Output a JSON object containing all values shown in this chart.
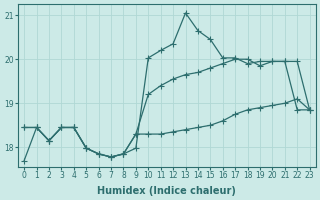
{
  "xlabel": "Humidex (Indice chaleur)",
  "bg_color": "#cceae7",
  "line_color": "#2d6e6e",
  "grid_color": "#b0d8d5",
  "ylim": [
    17.55,
    21.25
  ],
  "xlim": [
    -0.5,
    23.5
  ],
  "yticks": [
    18,
    19,
    20,
    21
  ],
  "xticks": [
    0,
    1,
    2,
    3,
    4,
    5,
    6,
    7,
    8,
    9,
    10,
    11,
    12,
    13,
    14,
    15,
    16,
    17,
    18,
    19,
    20,
    21,
    22,
    23
  ],
  "hours": [
    0,
    1,
    2,
    3,
    4,
    5,
    6,
    7,
    8,
    9,
    10,
    11,
    12,
    13,
    14,
    15,
    16,
    17,
    18,
    19,
    20,
    21,
    22,
    23
  ],
  "line1": [
    17.7,
    18.45,
    18.15,
    18.45,
    18.45,
    17.98,
    17.85,
    17.78,
    17.85,
    17.98,
    20.03,
    20.2,
    20.35,
    21.05,
    20.65,
    20.45,
    20.03,
    20.03,
    19.9,
    19.95,
    19.95,
    19.95,
    18.85,
    18.85
  ],
  "line2": [
    18.45,
    18.45,
    18.15,
    18.45,
    18.45,
    17.98,
    17.85,
    17.78,
    17.85,
    18.3,
    18.3,
    18.3,
    18.35,
    18.4,
    18.45,
    18.5,
    18.6,
    18.75,
    18.85,
    18.9,
    18.95,
    19.0,
    19.1,
    18.85
  ],
  "line3": [
    18.45,
    18.45,
    18.15,
    18.45,
    18.45,
    17.98,
    17.85,
    17.78,
    17.85,
    18.3,
    19.2,
    19.4,
    19.55,
    19.65,
    19.7,
    19.8,
    19.9,
    20.0,
    20.0,
    19.85,
    19.95,
    19.95,
    19.95,
    18.85
  ],
  "marker": "+",
  "markersize": 4.0,
  "linewidth": 0.9,
  "tick_fontsize": 5.5,
  "label_fontsize": 7.0
}
